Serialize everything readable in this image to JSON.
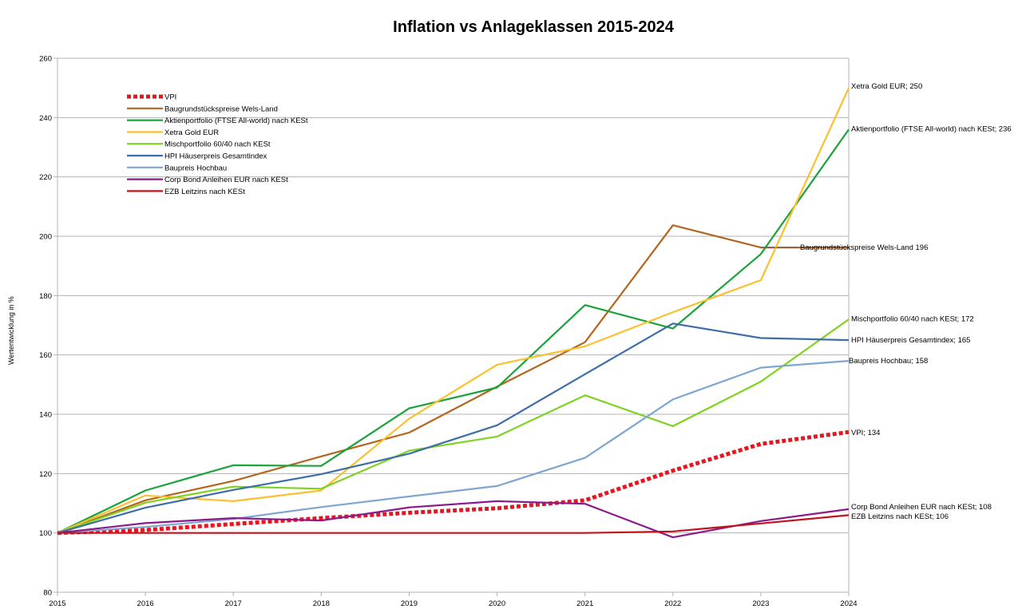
{
  "chart_data": {
    "type": "line",
    "title": "Inflation vs Anlageklassen 2015-2024",
    "xlabel": "",
    "ylabel": "Wertentwicklung in %",
    "x": [
      "2015",
      "2016",
      "2017",
      "2018",
      "2019",
      "2020",
      "2021",
      "2022",
      "2023",
      "2024"
    ],
    "ylim": [
      80,
      260
    ],
    "yticks": [
      "80",
      "100",
      "120",
      "140",
      "160",
      "180",
      "200",
      "220",
      "240",
      "260"
    ],
    "grid": true,
    "legend": "top-left",
    "series": [
      {
        "name": "VPI",
        "color": "#e8141e",
        "dashed": true,
        "values": [
          100,
          101,
          103,
          105,
          106.8,
          108.3,
          111,
          121,
          130,
          134
        ],
        "label": "VPI; 134"
      },
      {
        "name": "Baugrundstückspreise Wels-Land",
        "color": "#b5651d",
        "dashed": false,
        "values": [
          100,
          111,
          117.5,
          125.8,
          133.8,
          149.3,
          164.3,
          203.7,
          196.2,
          196.2
        ],
        "label": "Baugrundstückspreise Wels-Land 196"
      },
      {
        "name": "Aktienportfolio (FTSE All-world) nach KESt",
        "color": "#1aa33b",
        "dashed": false,
        "values": [
          100,
          114.3,
          122.8,
          122.6,
          142,
          149,
          176.8,
          168.9,
          194,
          236
        ],
        "label": "Aktienportfolio (FTSE All-world) nach KESt; 236"
      },
      {
        "name": "Xetra Gold EUR",
        "color": "#fbc02d",
        "dashed": false,
        "values": [
          100,
          112.6,
          110.7,
          114.3,
          138.5,
          156.7,
          162.9,
          174.4,
          185.2,
          250
        ],
        "label": "Xetra Gold EUR; 250"
      },
      {
        "name": "Mischportfolio 60/40 nach KESt",
        "color": "#7ed321",
        "dashed": false,
        "values": [
          100,
          110.2,
          115.6,
          114.9,
          127.7,
          132.5,
          146.4,
          136,
          151,
          172
        ],
        "label": "Mischportfolio 60/40 nach KESt; 172"
      },
      {
        "name": "HPI Häuserpreis Gesamtindex",
        "color": "#3e6ea7",
        "dashed": false,
        "values": [
          100,
          108.5,
          114.5,
          119.8,
          126.7,
          136.3,
          153.5,
          170.6,
          165.7,
          165
        ],
        "label": "HPI Häuserpreis Gesamtindex; 165"
      },
      {
        "name": "Baupreis Hochbau",
        "color": "#7ea6d0",
        "dashed": false,
        "values": [
          100,
          102,
          104.7,
          108.7,
          112.3,
          115.8,
          125.3,
          145,
          155.7,
          158
        ],
        "label": "Baupreis Hochbau; 158"
      },
      {
        "name": "Corp Bond Anleihen EUR nach KESt",
        "color": "#8b1a8b",
        "dashed": false,
        "values": [
          100,
          103.3,
          105,
          104.2,
          108.6,
          110.7,
          109.8,
          98.5,
          104,
          108
        ],
        "label": "Corp Bond Anleihen EUR nach KESt; 108"
      },
      {
        "name": "EZB Leitzins nach KESt",
        "color": "#c0141e",
        "dashed": false,
        "values": [
          100,
          100,
          100,
          100,
          100,
          100,
          100,
          100.5,
          103.2,
          106
        ],
        "label": "EZB Leitzins nach KESt; 106"
      }
    ]
  }
}
